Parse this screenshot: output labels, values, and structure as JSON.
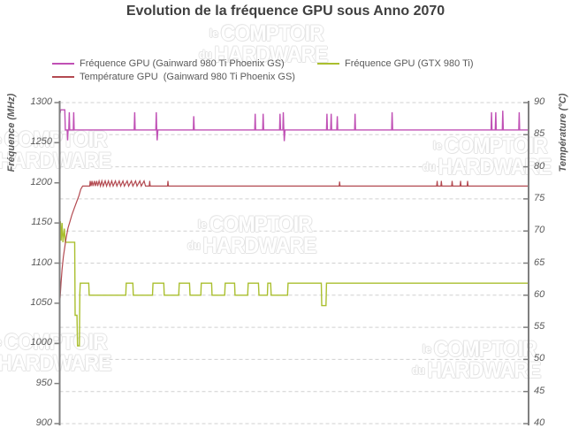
{
  "watermark": {
    "small1": "le",
    "big1": "COMPTOIR",
    "small2": "du",
    "big2": "HARDWARE"
  },
  "chart_data": {
    "type": "line",
    "title": "Evolution de la fréquence GPU sous Anno 2070",
    "left_axis": {
      "label": "Fréquence (MHz)",
      "min": 900,
      "max": 1300,
      "tick_step": 50,
      "ticks": [
        "1300",
        "1250",
        "1200",
        "1150",
        "1100",
        "1050",
        "1000",
        "950",
        "900"
      ]
    },
    "right_axis": {
      "label": "Température (°C)",
      "min": 40,
      "max": 90,
      "tick_step": 5,
      "ticks": [
        "90",
        "85",
        "80",
        "75",
        "70",
        "65",
        "60",
        "55",
        "50",
        "45",
        "40"
      ]
    },
    "grid": {
      "horizontal": true,
      "aligned_to": "right_axis",
      "style": "dashed"
    },
    "legend": {
      "position": "top"
    },
    "palette": {
      "gridline": "#d0d0d0",
      "axis": "#7f7f7f",
      "tick_text": "#595959",
      "title_text": "#3f3f3f",
      "legend_text": "#595959",
      "watermark_outline": "#e4e4e4"
    },
    "series": [
      {
        "id": "freq_gainward",
        "axis": "left",
        "unit": "MHz",
        "color": "#c050b5",
        "name": "Fréquence GPU (Gainward 980 Ti Phoenix GS)",
        "points": [
          [
            0,
            1284
          ],
          [
            0.2,
            1291
          ],
          [
            1.1,
            1291
          ],
          [
            1.2,
            1266
          ],
          [
            1.6,
            1266
          ],
          [
            1.7,
            1253
          ],
          [
            1.8,
            1266
          ],
          [
            1.95,
            1266
          ],
          [
            2.05,
            1288
          ],
          [
            2.15,
            1266
          ],
          [
            2.9,
            1266
          ],
          [
            3.0,
            1288
          ],
          [
            3.1,
            1266
          ],
          [
            15.9,
            1266
          ],
          [
            16.0,
            1288
          ],
          [
            16.1,
            1266
          ],
          [
            20.5,
            1266
          ],
          [
            20.6,
            1288
          ],
          [
            20.7,
            1266
          ],
          [
            20.8,
            1253
          ],
          [
            20.95,
            1266
          ],
          [
            28.5,
            1266
          ],
          [
            28.6,
            1283
          ],
          [
            28.7,
            1266
          ],
          [
            41.6,
            1266
          ],
          [
            41.7,
            1286
          ],
          [
            41.8,
            1266
          ],
          [
            43.3,
            1266
          ],
          [
            43.4,
            1286
          ],
          [
            43.5,
            1266
          ],
          [
            46.9,
            1266
          ],
          [
            47.0,
            1286
          ],
          [
            47.1,
            1266
          ],
          [
            47.6,
            1266
          ],
          [
            47.7,
            1288
          ],
          [
            47.8,
            1266
          ],
          [
            47.9,
            1252
          ],
          [
            48.05,
            1266
          ],
          [
            56.9,
            1266
          ],
          [
            57.0,
            1286
          ],
          [
            57.1,
            1266
          ],
          [
            57.8,
            1266
          ],
          [
            57.9,
            1286
          ],
          [
            58.0,
            1266
          ],
          [
            59.1,
            1266
          ],
          [
            59.2,
            1283
          ],
          [
            59.3,
            1266
          ],
          [
            62.9,
            1266
          ],
          [
            63.0,
            1286
          ],
          [
            63.1,
            1266
          ],
          [
            70.8,
            1266
          ],
          [
            70.9,
            1288
          ],
          [
            71.0,
            1266
          ],
          [
            92.0,
            1266
          ],
          [
            92.1,
            1288
          ],
          [
            92.2,
            1266
          ],
          [
            92.9,
            1266
          ],
          [
            93.0,
            1288
          ],
          [
            93.1,
            1266
          ],
          [
            94.4,
            1266
          ],
          [
            94.5,
            1290
          ],
          [
            94.6,
            1266
          ],
          [
            97.9,
            1266
          ],
          [
            98.0,
            1288
          ],
          [
            98.1,
            1266
          ],
          [
            100,
            1266
          ]
        ]
      },
      {
        "id": "freq_gtx980ti",
        "axis": "left",
        "unit": "MHz",
        "color": "#aabf2e",
        "name": "Fréquence GPU (GTX 980 Ti)",
        "points": [
          [
            0,
            1145
          ],
          [
            0.15,
            1152
          ],
          [
            0.3,
            1128
          ],
          [
            0.5,
            1150
          ],
          [
            0.7,
            1126
          ],
          [
            1.0,
            1143
          ],
          [
            1.2,
            1126
          ],
          [
            3.2,
            1126
          ],
          [
            3.3,
            1035
          ],
          [
            3.7,
            1035
          ],
          [
            3.8,
            997
          ],
          [
            4.2,
            997
          ],
          [
            4.3,
            1062
          ],
          [
            4.4,
            1075
          ],
          [
            6.2,
            1075
          ],
          [
            6.3,
            1060
          ],
          [
            14.1,
            1060
          ],
          [
            14.2,
            1075
          ],
          [
            15.6,
            1075
          ],
          [
            15.7,
            1060
          ],
          [
            19.8,
            1060
          ],
          [
            19.9,
            1075
          ],
          [
            22.2,
            1075
          ],
          [
            22.3,
            1060
          ],
          [
            25.4,
            1060
          ],
          [
            25.5,
            1075
          ],
          [
            27.7,
            1075
          ],
          [
            27.8,
            1060
          ],
          [
            30.1,
            1060
          ],
          [
            30.2,
            1075
          ],
          [
            32.4,
            1075
          ],
          [
            32.5,
            1060
          ],
          [
            35.2,
            1060
          ],
          [
            35.3,
            1075
          ],
          [
            37.3,
            1075
          ],
          [
            37.4,
            1060
          ],
          [
            40.1,
            1060
          ],
          [
            40.2,
            1075
          ],
          [
            42.4,
            1075
          ],
          [
            42.5,
            1060
          ],
          [
            44.3,
            1060
          ],
          [
            44.4,
            1075
          ],
          [
            45.0,
            1075
          ],
          [
            45.1,
            1060
          ],
          [
            48.6,
            1060
          ],
          [
            48.7,
            1075
          ],
          [
            55.8,
            1075
          ],
          [
            55.9,
            1047
          ],
          [
            56.8,
            1047
          ],
          [
            56.9,
            1075
          ],
          [
            100,
            1075
          ]
        ]
      },
      {
        "id": "temp_gainward",
        "axis": "right",
        "unit": "°C",
        "color": "#b34a51",
        "name": "Température GPU  (Gainward 980 Ti Phoenix GS)",
        "points": [
          [
            0.1,
            59.5
          ],
          [
            0.3,
            62
          ],
          [
            0.5,
            64
          ],
          [
            0.8,
            66
          ],
          [
            1.1,
            67.5
          ],
          [
            1.4,
            69
          ],
          [
            1.8,
            70.5
          ],
          [
            2.2,
            71.5
          ],
          [
            2.6,
            72.5
          ],
          [
            3.1,
            73.5
          ],
          [
            3.6,
            74.5
          ],
          [
            4.1,
            75.5
          ],
          [
            4.5,
            76.5
          ],
          [
            4.9,
            77
          ],
          [
            6.4,
            77
          ],
          [
            6.5,
            77.8
          ],
          [
            6.7,
            77
          ],
          [
            6.9,
            77.8
          ],
          [
            7.1,
            77
          ],
          [
            7.4,
            77.8
          ],
          [
            7.6,
            77
          ],
          [
            7.9,
            77.8
          ],
          [
            8.1,
            77
          ],
          [
            8.4,
            77.8
          ],
          [
            8.7,
            77
          ],
          [
            9.0,
            77.8
          ],
          [
            9.3,
            77
          ],
          [
            9.7,
            77.8
          ],
          [
            10.0,
            77
          ],
          [
            10.4,
            77.8
          ],
          [
            10.7,
            77
          ],
          [
            11.1,
            77.8
          ],
          [
            11.4,
            77
          ],
          [
            11.9,
            77.8
          ],
          [
            12.2,
            77
          ],
          [
            12.7,
            77.8
          ],
          [
            13.0,
            77
          ],
          [
            13.5,
            77.8
          ],
          [
            13.8,
            77
          ],
          [
            14.4,
            77.8
          ],
          [
            14.7,
            77
          ],
          [
            15.3,
            77.8
          ],
          [
            15.6,
            77
          ],
          [
            16.2,
            77.8
          ],
          [
            16.5,
            77
          ],
          [
            17.1,
            77.8
          ],
          [
            17.4,
            77
          ],
          [
            18.0,
            77.8
          ],
          [
            18.3,
            77
          ],
          [
            19.1,
            77
          ],
          [
            19.2,
            77.8
          ],
          [
            19.3,
            77
          ],
          [
            23.0,
            77
          ],
          [
            23.1,
            77.8
          ],
          [
            23.2,
            77
          ],
          [
            59.6,
            77
          ],
          [
            59.7,
            77.7
          ],
          [
            59.8,
            77
          ],
          [
            80.4,
            77
          ],
          [
            80.5,
            77.8
          ],
          [
            80.6,
            77
          ],
          [
            81.3,
            77
          ],
          [
            81.4,
            77.8
          ],
          [
            81.5,
            77
          ],
          [
            83.6,
            77
          ],
          [
            83.7,
            77.8
          ],
          [
            83.8,
            77
          ],
          [
            85.4,
            77
          ],
          [
            85.5,
            77.8
          ],
          [
            85.6,
            77
          ],
          [
            86.9,
            77
          ],
          [
            87.0,
            77.8
          ],
          [
            87.1,
            77
          ],
          [
            100,
            77
          ]
        ]
      }
    ]
  }
}
